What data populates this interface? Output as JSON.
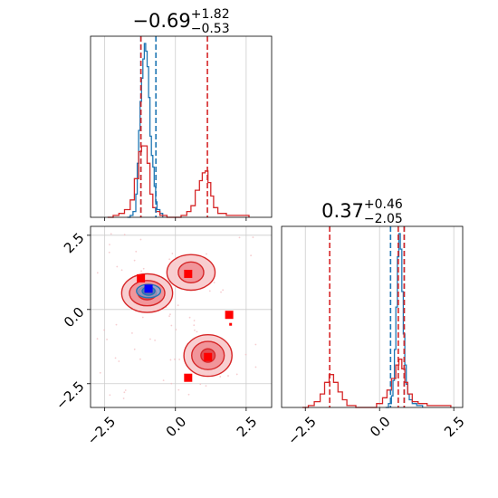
{
  "chart_data": {
    "type": "corner",
    "colors": {
      "blue": "#1f77b4",
      "red": "#d62728",
      "marker_red": "#ff0000",
      "marker_blue": "#0000ff",
      "grid": "#cccccc"
    },
    "panels": [
      {
        "id": "top_left_hist",
        "type": "histogram",
        "title": {
          "main": "−0.69",
          "sup": "+1.82",
          "sub": "−0.53"
        },
        "xlim": [
          -3.0,
          3.4
        ],
        "xgrid": [
          -2.5,
          0.0,
          2.5
        ],
        "quantile_lines": {
          "blue": [
            -1.22,
            -0.69
          ],
          "red": [
            -1.22,
            1.13
          ]
        },
        "series": [
          {
            "color": "blue",
            "bins": [
              [
                -1.7,
                0.0
              ],
              [
                -1.6,
                0.01
              ],
              [
                -1.5,
                0.03
              ],
              [
                -1.4,
                0.12
              ],
              [
                -1.35,
                0.28
              ],
              [
                -1.3,
                0.45
              ],
              [
                -1.25,
                0.6
              ],
              [
                -1.2,
                0.72
              ],
              [
                -1.15,
                0.82
              ],
              [
                -1.1,
                0.9
              ],
              [
                -1.05,
                0.86
              ],
              [
                -1.0,
                0.78
              ],
              [
                -0.95,
                0.62
              ],
              [
                -0.9,
                0.42
              ],
              [
                -0.85,
                0.32
              ],
              [
                -0.8,
                0.26
              ],
              [
                -0.75,
                0.16
              ],
              [
                -0.7,
                0.08
              ],
              [
                -0.65,
                0.04
              ],
              [
                -0.55,
                0.02
              ],
              [
                -0.45,
                0.0
              ]
            ]
          },
          {
            "color": "red",
            "bins": [
              [
                -2.4,
                0.0
              ],
              [
                -2.2,
                0.01
              ],
              [
                -2.0,
                0.02
              ],
              [
                -1.8,
                0.04
              ],
              [
                -1.6,
                0.09
              ],
              [
                -1.45,
                0.2
              ],
              [
                -1.3,
                0.34
              ],
              [
                -1.2,
                0.37
              ],
              [
                -1.1,
                0.37
              ],
              [
                -1.0,
                0.28
              ],
              [
                -0.9,
                0.12
              ],
              [
                -0.8,
                0.05
              ],
              [
                -0.7,
                0.03
              ],
              [
                -0.55,
                0.01
              ],
              [
                -0.3,
                0.0
              ],
              [
                0.0,
                0.0
              ],
              [
                0.2,
                0.01
              ],
              [
                0.4,
                0.03
              ],
              [
                0.55,
                0.06
              ],
              [
                0.7,
                0.14
              ],
              [
                0.85,
                0.19
              ],
              [
                0.95,
                0.23
              ],
              [
                1.05,
                0.24
              ],
              [
                1.15,
                0.18
              ],
              [
                1.25,
                0.11
              ],
              [
                1.35,
                0.05
              ],
              [
                1.5,
                0.02
              ],
              [
                1.8,
                0.01
              ],
              [
                2.2,
                0.01
              ],
              [
                2.6,
                0.0
              ]
            ]
          }
        ]
      },
      {
        "id": "bottom_right_hist",
        "type": "histogram",
        "title": {
          "main": "0.37",
          "sup": "+0.46",
          "sub": "−2.05"
        },
        "xlim": [
          -3.3,
          2.8
        ],
        "xgrid": [
          -2.5,
          0.0,
          2.5
        ],
        "xticks": [
          "−2.5",
          "0.0",
          "2.5"
        ],
        "quantile_lines": {
          "blue": [
            0.37,
            0.83
          ],
          "red": [
            -1.68,
            0.63,
            0.83
          ]
        },
        "series": [
          {
            "color": "blue",
            "bins": [
              [
                0.2,
                0.0
              ],
              [
                0.3,
                0.02
              ],
              [
                0.4,
                0.06
              ],
              [
                0.45,
                0.14
              ],
              [
                0.5,
                0.3
              ],
              [
                0.55,
                0.52
              ],
              [
                0.6,
                0.78
              ],
              [
                0.65,
                0.9
              ],
              [
                0.7,
                0.82
              ],
              [
                0.75,
                0.6
              ],
              [
                0.8,
                0.38
              ],
              [
                0.85,
                0.22
              ],
              [
                0.9,
                0.12
              ],
              [
                0.95,
                0.07
              ],
              [
                1.0,
                0.04
              ],
              [
                1.1,
                0.02
              ],
              [
                1.25,
                0.01
              ],
              [
                1.45,
                0.0
              ]
            ]
          },
          {
            "color": "red",
            "bins": [
              [
                -2.6,
                0.0
              ],
              [
                -2.4,
                0.01
              ],
              [
                -2.2,
                0.03
              ],
              [
                -2.0,
                0.07
              ],
              [
                -1.85,
                0.13
              ],
              [
                -1.7,
                0.17
              ],
              [
                -1.55,
                0.13
              ],
              [
                -1.4,
                0.08
              ],
              [
                -1.25,
                0.04
              ],
              [
                -1.1,
                0.01
              ],
              [
                -0.8,
                0.0
              ],
              [
                -0.3,
                0.0
              ],
              [
                -0.1,
                0.02
              ],
              [
                0.1,
                0.05
              ],
              [
                0.25,
                0.09
              ],
              [
                0.4,
                0.15
              ],
              [
                0.55,
                0.22
              ],
              [
                0.65,
                0.25
              ],
              [
                0.75,
                0.2
              ],
              [
                0.85,
                0.13
              ],
              [
                0.95,
                0.07
              ],
              [
                1.1,
                0.03
              ],
              [
                1.3,
                0.02
              ],
              [
                1.6,
                0.01
              ],
              [
                2.0,
                0.01
              ],
              [
                2.4,
                0.0
              ]
            ]
          }
        ]
      },
      {
        "id": "bottom_left_2d",
        "type": "contour",
        "xlim": [
          -3.0,
          3.4
        ],
        "ylim": [
          -3.3,
          2.8
        ],
        "xticks": [
          "−2.5",
          "0.0",
          "2.5"
        ],
        "yticks": [
          "−2.5",
          "0.0",
          "2.5"
        ],
        "xgrid": [
          -2.5,
          0.0,
          2.5
        ],
        "ygrid": [
          -2.5,
          0.0,
          2.5
        ],
        "red_modes": [
          {
            "cx": -1.0,
            "cy": 0.55,
            "levels": [
              [
                1.8,
                1.3
              ],
              [
                1.25,
                0.85
              ],
              [
                0.65,
                0.45
              ]
            ]
          },
          {
            "cx": 0.55,
            "cy": 1.25,
            "levels": [
              [
                1.7,
                1.2
              ],
              [
                0.9,
                0.7
              ]
            ]
          },
          {
            "cx": 1.15,
            "cy": -1.55,
            "levels": [
              [
                1.7,
                1.4
              ],
              [
                1.15,
                0.95
              ],
              [
                0.5,
                0.45
              ]
            ]
          }
        ],
        "blue_mode": {
          "cx": -0.95,
          "cy": 0.62,
          "levels": [
            [
              0.85,
              0.45
            ],
            [
              0.45,
              0.28
            ]
          ]
        },
        "red_markers": [
          [
            -1.22,
            1.05
          ],
          [
            -0.95,
            0.7
          ],
          [
            0.45,
            1.2
          ],
          [
            1.9,
            -0.18
          ],
          [
            1.15,
            -1.6
          ],
          [
            0.45,
            -2.3
          ]
        ],
        "red_small_markers": [
          [
            1.95,
            -0.5
          ]
        ],
        "blue_markers": [
          [
            -0.95,
            0.7
          ]
        ]
      }
    ]
  }
}
